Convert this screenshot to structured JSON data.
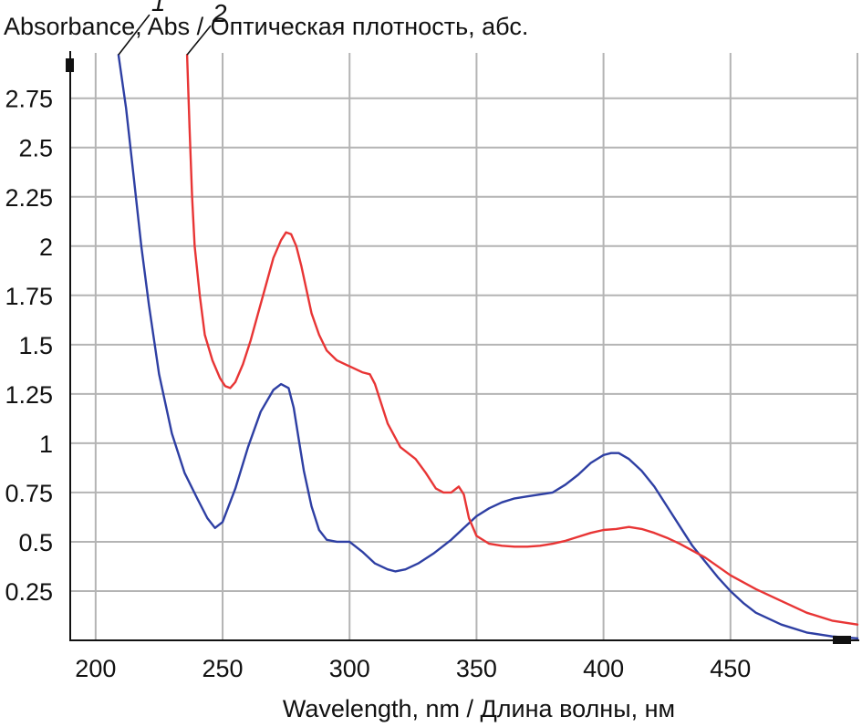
{
  "chart_data": {
    "type": "line",
    "title": "",
    "ylabel": "Absorbance, Abs / Оптическая плотность, абс.",
    "xlabel": "Wavelength, nm / Длина волны, нм",
    "xlim": [
      190,
      500
    ],
    "ylim": [
      0,
      2.98
    ],
    "x_ticks": [
      "200",
      "250",
      "300",
      "350",
      "400",
      "450"
    ],
    "y_ticks": [
      "0.25",
      "0.5",
      "0.75",
      "1",
      "1.25",
      "1.5",
      "1.75",
      "2",
      "2.25",
      "2.5",
      "2.75"
    ],
    "grid": true,
    "legend": "none",
    "series": [
      {
        "name": "1",
        "color": "#2e3fa3",
        "x": [
          209,
          212,
          215,
          218,
          221,
          225,
          230,
          235,
          240,
          244,
          247,
          250,
          255,
          260,
          265,
          270,
          273,
          276,
          278,
          280,
          282,
          285,
          288,
          291,
          295,
          300,
          305,
          310,
          315,
          318,
          322,
          327,
          333,
          340,
          345,
          350,
          355,
          360,
          365,
          370,
          375,
          380,
          385,
          390,
          395,
          400,
          403,
          406,
          410,
          415,
          420,
          425,
          430,
          435,
          440,
          445,
          450,
          455,
          460,
          470,
          480,
          490,
          500
        ],
        "y": [
          2.97,
          2.7,
          2.35,
          2.0,
          1.7,
          1.35,
          1.05,
          0.85,
          0.72,
          0.62,
          0.57,
          0.6,
          0.77,
          0.98,
          1.16,
          1.27,
          1.3,
          1.28,
          1.18,
          1.02,
          0.86,
          0.68,
          0.56,
          0.51,
          0.5,
          0.5,
          0.45,
          0.39,
          0.36,
          0.35,
          0.36,
          0.39,
          0.44,
          0.51,
          0.57,
          0.63,
          0.67,
          0.7,
          0.72,
          0.73,
          0.74,
          0.75,
          0.79,
          0.84,
          0.9,
          0.94,
          0.95,
          0.95,
          0.92,
          0.86,
          0.78,
          0.68,
          0.58,
          0.48,
          0.4,
          0.32,
          0.25,
          0.19,
          0.14,
          0.08,
          0.04,
          0.02,
          0.01
        ]
      },
      {
        "name": "2",
        "color": "#e83535",
        "x": [
          236,
          237,
          238,
          239,
          241,
          243,
          246,
          249,
          251,
          253,
          255,
          258,
          261,
          264,
          267,
          270,
          273,
          275,
          277,
          279,
          281,
          283,
          285,
          288,
          291,
          295,
          300,
          305,
          308,
          310,
          312,
          315,
          320,
          326,
          330,
          334,
          337,
          340,
          343,
          345,
          347,
          350,
          355,
          360,
          365,
          370,
          375,
          380,
          385,
          390,
          395,
          400,
          405,
          410,
          415,
          420,
          425,
          430,
          440,
          450,
          460,
          470,
          480,
          490,
          500
        ],
        "y": [
          2.97,
          2.6,
          2.25,
          2.0,
          1.75,
          1.55,
          1.42,
          1.33,
          1.29,
          1.28,
          1.31,
          1.4,
          1.52,
          1.66,
          1.8,
          1.94,
          2.03,
          2.07,
          2.06,
          2.0,
          1.9,
          1.78,
          1.66,
          1.55,
          1.47,
          1.42,
          1.39,
          1.36,
          1.35,
          1.3,
          1.22,
          1.1,
          0.98,
          0.92,
          0.85,
          0.77,
          0.75,
          0.75,
          0.78,
          0.74,
          0.62,
          0.53,
          0.49,
          0.48,
          0.475,
          0.475,
          0.48,
          0.49,
          0.505,
          0.525,
          0.545,
          0.56,
          0.565,
          0.575,
          0.565,
          0.545,
          0.52,
          0.49,
          0.42,
          0.33,
          0.26,
          0.2,
          0.14,
          0.1,
          0.08
        ]
      }
    ],
    "annotations": [
      {
        "text": "1",
        "series": "1"
      },
      {
        "text": "2",
        "series": "2"
      }
    ]
  }
}
